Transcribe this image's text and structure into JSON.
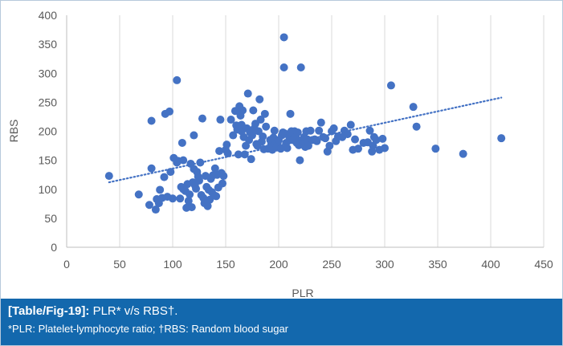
{
  "chart_data": {
    "type": "scatter",
    "xlabel": "PLR",
    "ylabel": "RBS",
    "xlim": [
      0,
      450
    ],
    "ylim": [
      0,
      400
    ],
    "x_ticks": [
      0,
      50,
      100,
      150,
      200,
      250,
      300,
      350,
      400,
      450
    ],
    "y_ticks": [
      0,
      50,
      100,
      150,
      200,
      250,
      300,
      350,
      400
    ],
    "grid": "vertical",
    "marker_color": "#4472c4",
    "trendline": {
      "style": "dotted",
      "color": "#4472c4",
      "x": [
        40,
        410
      ],
      "y": [
        112,
        258
      ]
    },
    "points": [
      [
        40,
        123
      ],
      [
        68,
        91
      ],
      [
        78,
        73
      ],
      [
        80,
        136
      ],
      [
        80,
        218
      ],
      [
        84,
        65
      ],
      [
        85,
        83
      ],
      [
        87,
        76
      ],
      [
        88,
        99
      ],
      [
        90,
        85
      ],
      [
        92,
        121
      ],
      [
        93,
        230
      ],
      [
        95,
        87
      ],
      [
        97,
        234
      ],
      [
        98,
        130
      ],
      [
        100,
        84
      ],
      [
        101,
        154
      ],
      [
        104,
        288
      ],
      [
        104,
        146
      ],
      [
        105,
        149
      ],
      [
        107,
        84
      ],
      [
        108,
        104
      ],
      [
        109,
        180
      ],
      [
        110,
        100
      ],
      [
        110,
        150
      ],
      [
        112,
        97
      ],
      [
        113,
        68
      ],
      [
        114,
        109
      ],
      [
        115,
        80
      ],
      [
        116,
        91
      ],
      [
        117,
        144
      ],
      [
        118,
        69
      ],
      [
        119,
        112
      ],
      [
        120,
        193
      ],
      [
        120,
        135
      ],
      [
        121,
        107
      ],
      [
        122,
        101
      ],
      [
        123,
        130
      ],
      [
        124,
        122
      ],
      [
        125,
        115
      ],
      [
        126,
        146
      ],
      [
        127,
        90
      ],
      [
        128,
        222
      ],
      [
        129,
        85
      ],
      [
        130,
        76
      ],
      [
        131,
        123
      ],
      [
        132,
        104
      ],
      [
        133,
        71
      ],
      [
        134,
        99
      ],
      [
        135,
        82
      ],
      [
        136,
        118
      ],
      [
        137,
        95
      ],
      [
        138,
        124
      ],
      [
        139,
        90
      ],
      [
        140,
        136
      ],
      [
        141,
        88
      ],
      [
        142,
        125
      ],
      [
        143,
        103
      ],
      [
        144,
        166
      ],
      [
        145,
        220
      ],
      [
        146,
        128
      ],
      [
        147,
        110
      ],
      [
        148,
        123
      ],
      [
        150,
        168
      ],
      [
        151,
        177
      ],
      [
        152,
        162
      ],
      [
        155,
        220
      ],
      [
        157,
        193
      ],
      [
        159,
        235
      ],
      [
        160,
        210
      ],
      [
        161,
        203
      ],
      [
        162,
        160
      ],
      [
        163,
        243
      ],
      [
        164,
        227
      ],
      [
        165,
        200
      ],
      [
        165,
        211
      ],
      [
        166,
        236
      ],
      [
        167,
        190
      ],
      [
        168,
        160
      ],
      [
        169,
        175
      ],
      [
        170,
        205
      ],
      [
        171,
        265
      ],
      [
        172,
        185
      ],
      [
        173,
        198
      ],
      [
        174,
        152
      ],
      [
        175,
        193
      ],
      [
        176,
        236
      ],
      [
        177,
        205
      ],
      [
        178,
        213
      ],
      [
        179,
        178
      ],
      [
        180,
        175
      ],
      [
        181,
        200
      ],
      [
        182,
        255
      ],
      [
        183,
        220
      ],
      [
        184,
        182
      ],
      [
        185,
        191
      ],
      [
        186,
        169
      ],
      [
        187,
        230
      ],
      [
        188,
        208
      ],
      [
        190,
        170
      ],
      [
        192,
        185
      ],
      [
        193,
        178
      ],
      [
        194,
        168
      ],
      [
        195,
        189
      ],
      [
        196,
        201
      ],
      [
        197,
        178
      ],
      [
        198,
        172
      ],
      [
        199,
        180
      ],
      [
        200,
        185
      ],
      [
        202,
        170
      ],
      [
        203,
        193
      ],
      [
        204,
        198
      ],
      [
        205,
        362
      ],
      [
        205,
        310
      ],
      [
        206,
        196
      ],
      [
        207,
        180
      ],
      [
        208,
        171
      ],
      [
        210,
        190
      ],
      [
        211,
        230
      ],
      [
        212,
        200
      ],
      [
        213,
        185
      ],
      [
        214,
        186
      ],
      [
        215,
        200
      ],
      [
        216,
        190
      ],
      [
        217,
        180
      ],
      [
        218,
        198
      ],
      [
        219,
        176
      ],
      [
        220,
        150
      ],
      [
        221,
        310
      ],
      [
        222,
        185
      ],
      [
        223,
        178
      ],
      [
        224,
        190
      ],
      [
        225,
        173
      ],
      [
        226,
        200
      ],
      [
        227,
        186
      ],
      [
        228,
        175
      ],
      [
        230,
        201
      ],
      [
        232,
        185
      ],
      [
        234,
        186
      ],
      [
        236,
        183
      ],
      [
        238,
        201
      ],
      [
        240,
        215
      ],
      [
        242,
        190
      ],
      [
        244,
        188
      ],
      [
        246,
        165
      ],
      [
        248,
        175
      ],
      [
        250,
        200
      ],
      [
        252,
        205
      ],
      [
        254,
        183
      ],
      [
        256,
        191
      ],
      [
        260,
        190
      ],
      [
        262,
        201
      ],
      [
        265,
        195
      ],
      [
        268,
        211
      ],
      [
        270,
        168
      ],
      [
        272,
        186
      ],
      [
        275,
        170
      ],
      [
        280,
        180
      ],
      [
        284,
        181
      ],
      [
        286,
        201
      ],
      [
        288,
        165
      ],
      [
        289,
        175
      ],
      [
        290,
        190
      ],
      [
        292,
        185
      ],
      [
        295,
        168
      ],
      [
        298,
        187
      ],
      [
        300,
        171
      ],
      [
        306,
        279
      ],
      [
        327,
        242
      ],
      [
        330,
        208
      ],
      [
        348,
        170
      ],
      [
        374,
        161
      ],
      [
        410,
        188
      ]
    ]
  },
  "caption": {
    "label": "[Table/Fig-19]:",
    "title": "PLR* v/s RBS†.",
    "footnote": "*PLR: Platelet-lymphocyte ratio; †RBS: Random blood sugar"
  }
}
